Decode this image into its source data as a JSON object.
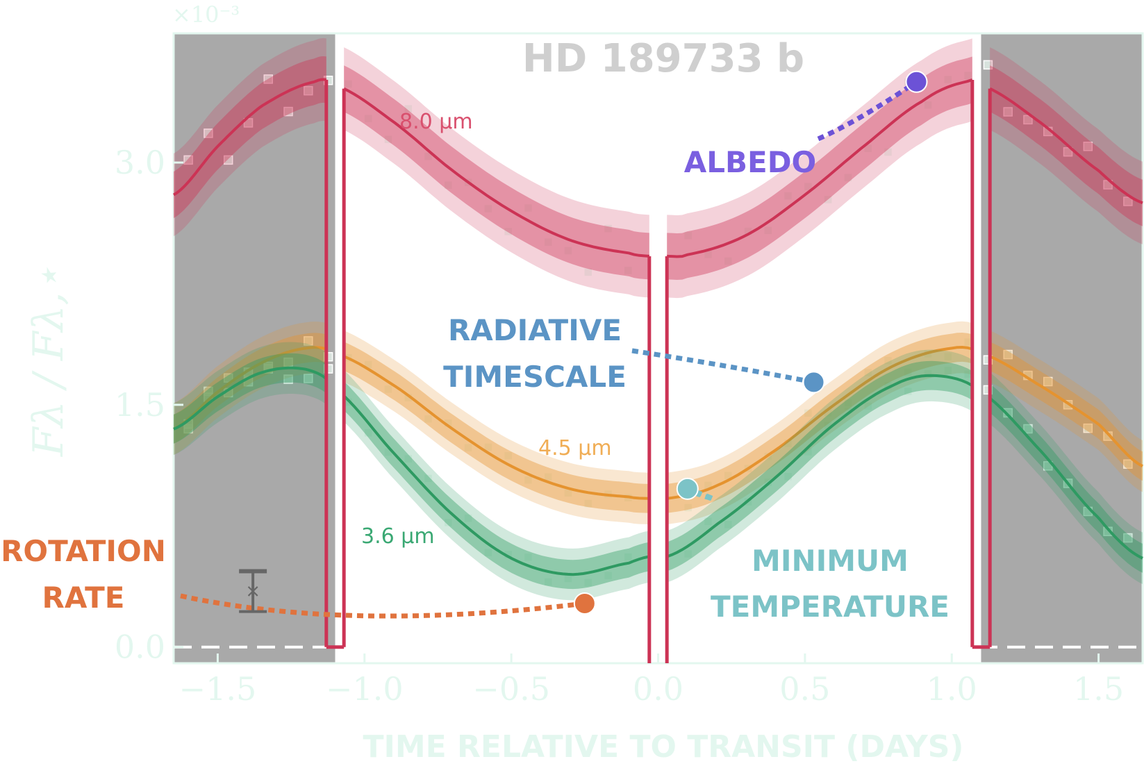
{
  "chart_data": {
    "type": "line",
    "title": "HD 189733 b",
    "xlabel": "TIME RELATIVE TO TRANSIT (DAYS)",
    "ylabel": "Fλ / Fλ,⋆",
    "y_scale_note": "×10⁻³",
    "xlim": [
      -1.65,
      1.65
    ],
    "ylim": [
      -0.1,
      3.8
    ],
    "x_ticks": [
      -1.5,
      -1.0,
      -0.5,
      0.0,
      0.5,
      1.0,
      1.5
    ],
    "x_tick_labels": [
      "−1.5",
      "−1.0",
      "−0.5",
      "0.0",
      "0.5",
      "1.0",
      "1.5"
    ],
    "y_ticks": [
      0.0,
      1.5,
      3.0
    ],
    "y_tick_labels": [
      "0.0",
      "1.5",
      "3.0"
    ],
    "eclipse_regions": [
      [
        -1.65,
        -1.1
      ],
      [
        1.1,
        1.65
      ]
    ],
    "transit_gap": [
      -0.03,
      0.03
    ],
    "series": [
      {
        "name": "8.0 μm",
        "color": "#cc3355",
        "x": [
          -1.65,
          -1.5,
          -1.35,
          -1.17,
          -1.1,
          -0.9,
          -0.7,
          -0.5,
          -0.3,
          -0.1,
          -0.03,
          0.03,
          0.1,
          0.3,
          0.5,
          0.7,
          0.9,
          1.05,
          1.1,
          1.3,
          1.5,
          1.65
        ],
        "y": [
          2.8,
          3.1,
          3.35,
          3.5,
          3.48,
          3.25,
          2.95,
          2.7,
          2.52,
          2.44,
          2.42,
          2.42,
          2.43,
          2.55,
          2.8,
          3.1,
          3.38,
          3.5,
          3.48,
          3.25,
          2.95,
          2.75
        ]
      },
      {
        "name": "4.5 μm",
        "color": "#e5932f",
        "x": [
          -1.65,
          -1.5,
          -1.35,
          -1.2,
          -1.1,
          -0.9,
          -0.7,
          -0.5,
          -0.3,
          -0.1,
          -0.03,
          0.03,
          0.2,
          0.4,
          0.6,
          0.8,
          1.0,
          1.1,
          1.3,
          1.5,
          1.65
        ],
        "y": [
          1.35,
          1.58,
          1.76,
          1.85,
          1.82,
          1.62,
          1.35,
          1.12,
          0.98,
          0.93,
          0.92,
          0.92,
          1.0,
          1.22,
          1.5,
          1.74,
          1.85,
          1.82,
          1.62,
          1.38,
          1.12
        ]
      },
      {
        "name": "3.6 μm",
        "color": "#2e9a62",
        "x": [
          -1.65,
          -1.5,
          -1.35,
          -1.2,
          -1.1,
          -0.9,
          -0.7,
          -0.5,
          -0.3,
          -0.1,
          -0.03,
          0.03,
          0.2,
          0.4,
          0.6,
          0.8,
          0.95,
          1.1,
          1.3,
          1.5,
          1.65
        ],
        "y": [
          1.35,
          1.55,
          1.7,
          1.72,
          1.6,
          1.2,
          0.82,
          0.55,
          0.45,
          0.52,
          0.56,
          0.56,
          0.76,
          1.05,
          1.38,
          1.62,
          1.68,
          1.58,
          1.22,
          0.8,
          0.55
        ]
      }
    ],
    "annotations": [
      {
        "label": "ALBEDO",
        "color": "#6c52d6",
        "marker_x": 0.88,
        "marker_y": 3.5
      },
      {
        "label_lines": [
          "RADIATIVE",
          "TIMESCALE"
        ],
        "color": "#5b94c5",
        "marker_x": 0.53,
        "marker_y": 1.64
      },
      {
        "label_lines": [
          "MINIMUM",
          "TEMPERATURE"
        ],
        "color": "#7cc3c7",
        "marker_x": 0.1,
        "marker_y": 0.98
      },
      {
        "label_lines": [
          "ROTATION",
          "RATE"
        ],
        "color": "#e0733e",
        "marker_x": -0.25,
        "marker_y": 0.27
      }
    ]
  }
}
